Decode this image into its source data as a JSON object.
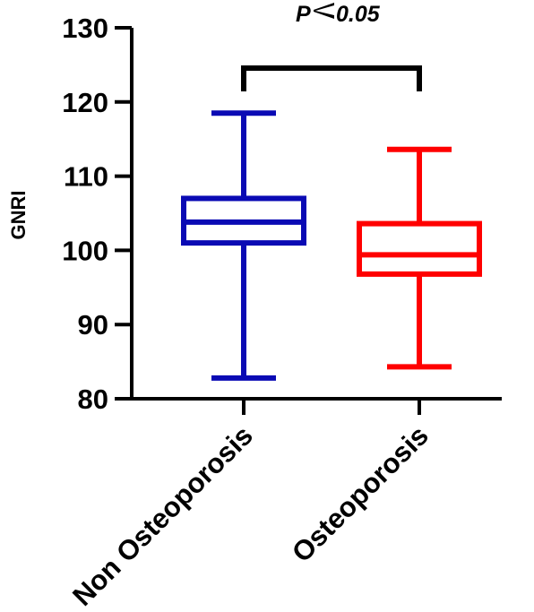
{
  "chart_data": {
    "type": "box",
    "ylabel": "GNRI",
    "xlabel": "",
    "ylim": [
      80,
      130
    ],
    "yticks": [
      80,
      90,
      100,
      110,
      120,
      130
    ],
    "categories": [
      "Non Osteoporosis",
      "Osteoporosis"
    ],
    "boxes": [
      {
        "category": "Non Osteoporosis",
        "min": 82.8,
        "q1": 101.0,
        "median": 103.8,
        "q3": 107.0,
        "max": 118.5,
        "color": "#0a0ab4"
      },
      {
        "category": "Osteoporosis",
        "min": 84.3,
        "q1": 96.8,
        "median": 99.4,
        "q3": 103.6,
        "max": 113.6,
        "color": "#ff0000"
      }
    ],
    "annotation": {
      "prefix": "P",
      "symbol": "<",
      "value": "0.05"
    }
  }
}
